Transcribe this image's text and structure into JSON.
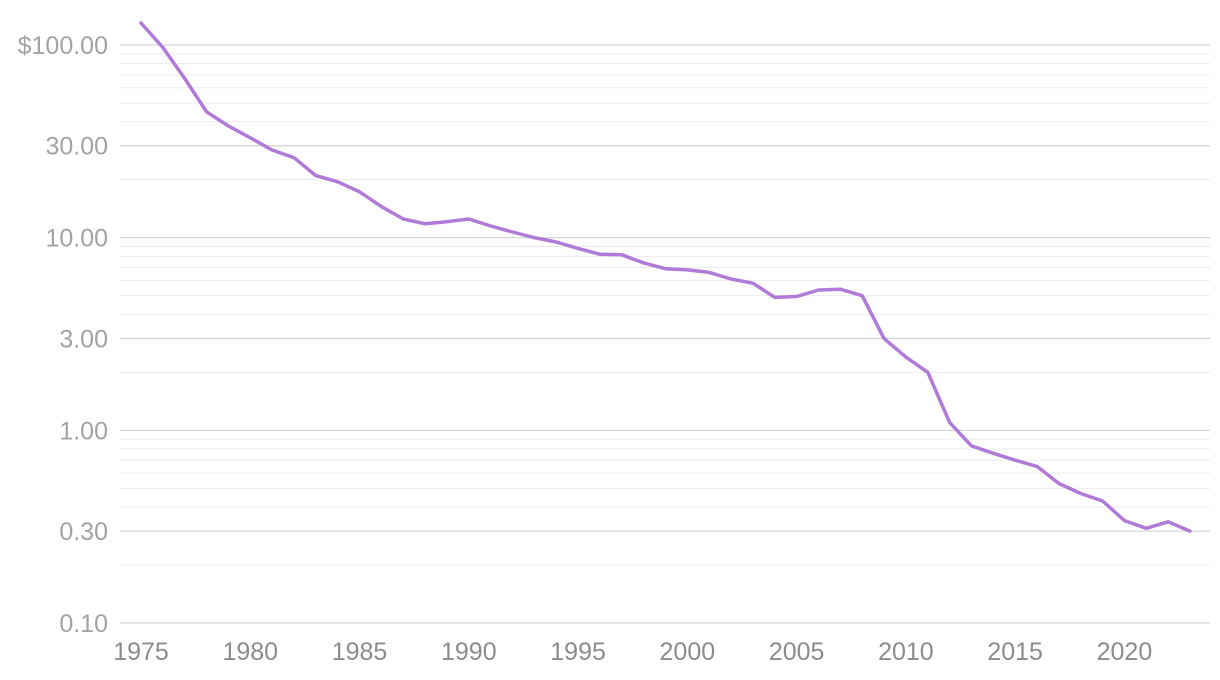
{
  "chart_data": {
    "type": "line",
    "title": "",
    "xlabel": "",
    "ylabel": "",
    "y_scale": "log",
    "xlim": [
      1975,
      2023
    ],
    "ylim": [
      0.1,
      130
    ],
    "y_ticks": [
      {
        "value": 100,
        "label": "$100.00"
      },
      {
        "value": 30,
        "label": "30.00"
      },
      {
        "value": 10,
        "label": "10.00"
      },
      {
        "value": 3,
        "label": "3.00"
      },
      {
        "value": 1,
        "label": "1.00"
      },
      {
        "value": 0.3,
        "label": "0.30"
      },
      {
        "value": 0.1,
        "label": "0.10"
      }
    ],
    "x_ticks": [
      {
        "value": 1975,
        "label": "1975"
      },
      {
        "value": 1980,
        "label": "1980"
      },
      {
        "value": 1985,
        "label": "1985"
      },
      {
        "value": 1990,
        "label": "1990"
      },
      {
        "value": 1995,
        "label": "1995"
      },
      {
        "value": 2000,
        "label": "2000"
      },
      {
        "value": 2005,
        "label": "2005"
      },
      {
        "value": 2010,
        "label": "2010"
      },
      {
        "value": 2015,
        "label": "2015"
      },
      {
        "value": 2020,
        "label": "2020"
      }
    ],
    "grid": true,
    "legend": "none",
    "series": [
      {
        "color": "#b07ad8",
        "x": [
          1975,
          1976,
          1977,
          1978,
          1979,
          1980,
          1981,
          1982,
          1983,
          1984,
          1985,
          1986,
          1987,
          1988,
          1989,
          1990,
          1991,
          1992,
          1993,
          1994,
          1995,
          1996,
          1997,
          1998,
          1999,
          2000,
          2001,
          2002,
          2003,
          2004,
          2005,
          2006,
          2007,
          2008,
          2009,
          2010,
          2011,
          2012,
          2013,
          2014,
          2015,
          2016,
          2017,
          2018,
          2019,
          2020,
          2021,
          2022,
          2023
        ],
        "y": [
          130,
          97,
          67,
          45,
          38,
          33,
          28.5,
          26,
          21,
          19.5,
          17.3,
          14.5,
          12.5,
          11.8,
          12.1,
          12.5,
          11.5,
          10.7,
          10,
          9.5,
          8.8,
          8.2,
          8.15,
          7.4,
          6.9,
          6.8,
          6.6,
          6.1,
          5.8,
          4.9,
          4.95,
          5.35,
          5.4,
          5,
          3,
          2.4,
          2,
          1.1,
          0.83,
          0.76,
          0.7,
          0.65,
          0.53,
          0.47,
          0.43,
          0.34,
          0.31,
          0.335,
          0.3
        ]
      }
    ]
  }
}
